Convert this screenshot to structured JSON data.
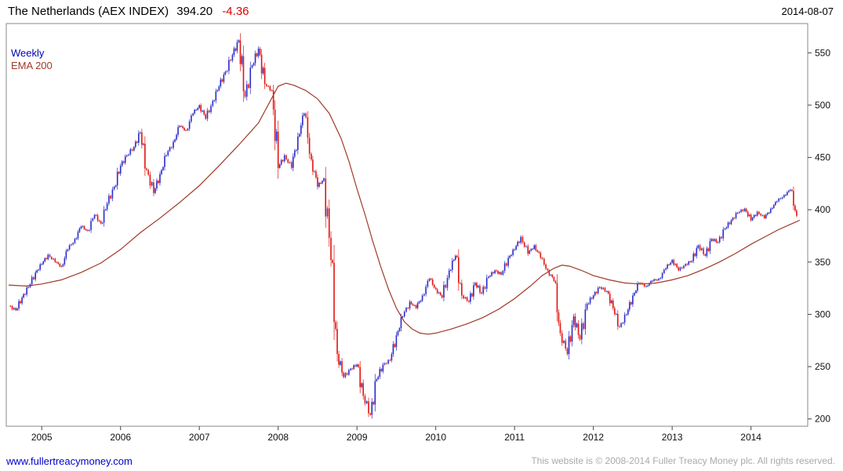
{
  "header": {
    "title": "The Netherlands (AEX INDEX)",
    "last_price": "394.20",
    "change": "-4.36",
    "date": "2014-08-07"
  },
  "legend": {
    "timeframe": "Weekly",
    "overlay": "EMA 200"
  },
  "footer": {
    "site_link": "www.fullertreacymoney.com",
    "copyright": "This website is © 2008-2014 Fuller Treacy Money plc. All rights reserved."
  },
  "colors": {
    "up_candle": "#2a2ac8",
    "down_candle": "#e01410",
    "ema_line": "#a03a28",
    "legend_timeframe": "#0000bb",
    "legend_overlay": "#a03a28",
    "change_negative": "#e00000",
    "link": "#0000cc",
    "copyright_text": "#aaaaaa",
    "axis_border": "#888888",
    "tick": "#444444",
    "axis_text": "#111111"
  },
  "chart_data": {
    "type": "candlestick",
    "title": "The Netherlands (AEX INDEX)",
    "timeframe": "Weekly",
    "overlay": "EMA 200",
    "last_price": 394.2,
    "change": -4.36,
    "grid": false,
    "y_axis_side": "right",
    "x_ticks": [
      2005,
      2006,
      2007,
      2008,
      2009,
      2010,
      2011,
      2012,
      2013,
      2014
    ],
    "y_ticks": [
      200,
      250,
      300,
      350,
      400,
      450,
      500,
      550
    ],
    "x_range": [
      2004.55,
      2014.72
    ],
    "y_range": [
      193,
      578
    ],
    "price_monthly": [
      [
        2004.58,
        308
      ],
      [
        2004.67,
        304
      ],
      [
        2004.75,
        316
      ],
      [
        2004.83,
        326
      ],
      [
        2004.92,
        340
      ],
      [
        2005.0,
        348
      ],
      [
        2005.08,
        357
      ],
      [
        2005.17,
        350
      ],
      [
        2005.25,
        346
      ],
      [
        2005.33,
        362
      ],
      [
        2005.42,
        372
      ],
      [
        2005.5,
        384
      ],
      [
        2005.58,
        380
      ],
      [
        2005.67,
        395
      ],
      [
        2005.75,
        387
      ],
      [
        2005.83,
        406
      ],
      [
        2005.92,
        422
      ],
      [
        2006.0,
        442
      ],
      [
        2006.08,
        452
      ],
      [
        2006.17,
        460
      ],
      [
        2006.25,
        474
      ],
      [
        2006.33,
        438
      ],
      [
        2006.42,
        416
      ],
      [
        2006.5,
        434
      ],
      [
        2006.58,
        452
      ],
      [
        2006.67,
        465
      ],
      [
        2006.75,
        480
      ],
      [
        2006.83,
        476
      ],
      [
        2006.92,
        492
      ],
      [
        2007.0,
        500
      ],
      [
        2007.08,
        487
      ],
      [
        2007.17,
        504
      ],
      [
        2007.25,
        518
      ],
      [
        2007.33,
        532
      ],
      [
        2007.42,
        548
      ],
      [
        2007.5,
        562
      ],
      [
        2007.58,
        508
      ],
      [
        2007.67,
        538
      ],
      [
        2007.75,
        554
      ],
      [
        2007.83,
        520
      ],
      [
        2007.92,
        514
      ],
      [
        2008.0,
        440
      ],
      [
        2008.08,
        452
      ],
      [
        2008.17,
        440
      ],
      [
        2008.25,
        470
      ],
      [
        2008.33,
        492
      ],
      [
        2008.42,
        448
      ],
      [
        2008.5,
        422
      ],
      [
        2008.58,
        430
      ],
      [
        2008.67,
        352
      ],
      [
        2008.75,
        262
      ],
      [
        2008.83,
        240
      ],
      [
        2008.92,
        248
      ],
      [
        2009.0,
        252
      ],
      [
        2009.08,
        222
      ],
      [
        2009.17,
        204
      ],
      [
        2009.25,
        238
      ],
      [
        2009.33,
        252
      ],
      [
        2009.42,
        256
      ],
      [
        2009.5,
        280
      ],
      [
        2009.58,
        298
      ],
      [
        2009.67,
        312
      ],
      [
        2009.75,
        306
      ],
      [
        2009.83,
        318
      ],
      [
        2009.92,
        334
      ],
      [
        2010.0,
        324
      ],
      [
        2010.08,
        316
      ],
      [
        2010.17,
        342
      ],
      [
        2010.25,
        356
      ],
      [
        2010.33,
        318
      ],
      [
        2010.42,
        312
      ],
      [
        2010.5,
        330
      ],
      [
        2010.58,
        320
      ],
      [
        2010.67,
        336
      ],
      [
        2010.75,
        342
      ],
      [
        2010.83,
        338
      ],
      [
        2010.92,
        354
      ],
      [
        2011.0,
        362
      ],
      [
        2011.08,
        374
      ],
      [
        2011.17,
        358
      ],
      [
        2011.25,
        366
      ],
      [
        2011.33,
        354
      ],
      [
        2011.42,
        342
      ],
      [
        2011.5,
        332
      ],
      [
        2011.58,
        282
      ],
      [
        2011.67,
        262
      ],
      [
        2011.75,
        298
      ],
      [
        2011.83,
        276
      ],
      [
        2011.92,
        310
      ],
      [
        2012.0,
        318
      ],
      [
        2012.08,
        326
      ],
      [
        2012.17,
        322
      ],
      [
        2012.25,
        306
      ],
      [
        2012.33,
        288
      ],
      [
        2012.42,
        300
      ],
      [
        2012.5,
        318
      ],
      [
        2012.58,
        330
      ],
      [
        2012.67,
        327
      ],
      [
        2012.75,
        332
      ],
      [
        2012.83,
        334
      ],
      [
        2012.92,
        344
      ],
      [
        2013.0,
        352
      ],
      [
        2013.08,
        342
      ],
      [
        2013.17,
        348
      ],
      [
        2013.25,
        351
      ],
      [
        2013.33,
        366
      ],
      [
        2013.42,
        356
      ],
      [
        2013.5,
        372
      ],
      [
        2013.58,
        369
      ],
      [
        2013.67,
        382
      ],
      [
        2013.75,
        390
      ],
      [
        2013.83,
        397
      ],
      [
        2013.92,
        401
      ],
      [
        2014.0,
        390
      ],
      [
        2014.08,
        398
      ],
      [
        2014.17,
        392
      ],
      [
        2014.25,
        401
      ],
      [
        2014.33,
        408
      ],
      [
        2014.42,
        414
      ],
      [
        2014.5,
        419
      ],
      [
        2014.58,
        394.2
      ]
    ],
    "ema_200": [
      [
        2004.58,
        328
      ],
      [
        2004.8,
        327
      ],
      [
        2005.0,
        329
      ],
      [
        2005.25,
        333
      ],
      [
        2005.5,
        340
      ],
      [
        2005.75,
        349
      ],
      [
        2006.0,
        362
      ],
      [
        2006.25,
        378
      ],
      [
        2006.5,
        392
      ],
      [
        2006.75,
        407
      ],
      [
        2007.0,
        423
      ],
      [
        2007.25,
        442
      ],
      [
        2007.5,
        462
      ],
      [
        2007.75,
        483
      ],
      [
        2008.0,
        518
      ],
      [
        2008.1,
        521
      ],
      [
        2008.2,
        519
      ],
      [
        2008.35,
        514
      ],
      [
        2008.5,
        506
      ],
      [
        2008.65,
        492
      ],
      [
        2008.8,
        468
      ],
      [
        2008.9,
        446
      ],
      [
        2009.0,
        420
      ],
      [
        2009.1,
        396
      ],
      [
        2009.2,
        370
      ],
      [
        2009.3,
        346
      ],
      [
        2009.4,
        324
      ],
      [
        2009.5,
        306
      ],
      [
        2009.6,
        293
      ],
      [
        2009.7,
        286
      ],
      [
        2009.8,
        282
      ],
      [
        2009.9,
        281
      ],
      [
        2010.0,
        282
      ],
      [
        2010.2,
        286
      ],
      [
        2010.4,
        291
      ],
      [
        2010.6,
        297
      ],
      [
        2010.8,
        305
      ],
      [
        2011.0,
        315
      ],
      [
        2011.2,
        327
      ],
      [
        2011.35,
        337
      ],
      [
        2011.5,
        344
      ],
      [
        2011.6,
        347
      ],
      [
        2011.7,
        346
      ],
      [
        2011.85,
        342
      ],
      [
        2012.0,
        337
      ],
      [
        2012.2,
        333
      ],
      [
        2012.4,
        330
      ],
      [
        2012.6,
        329
      ],
      [
        2012.8,
        330
      ],
      [
        2013.0,
        333
      ],
      [
        2013.2,
        337
      ],
      [
        2013.4,
        343
      ],
      [
        2013.6,
        350
      ],
      [
        2013.8,
        358
      ],
      [
        2014.0,
        367
      ],
      [
        2014.2,
        375
      ],
      [
        2014.35,
        381
      ],
      [
        2014.5,
        386
      ],
      [
        2014.62,
        390
      ]
    ]
  }
}
